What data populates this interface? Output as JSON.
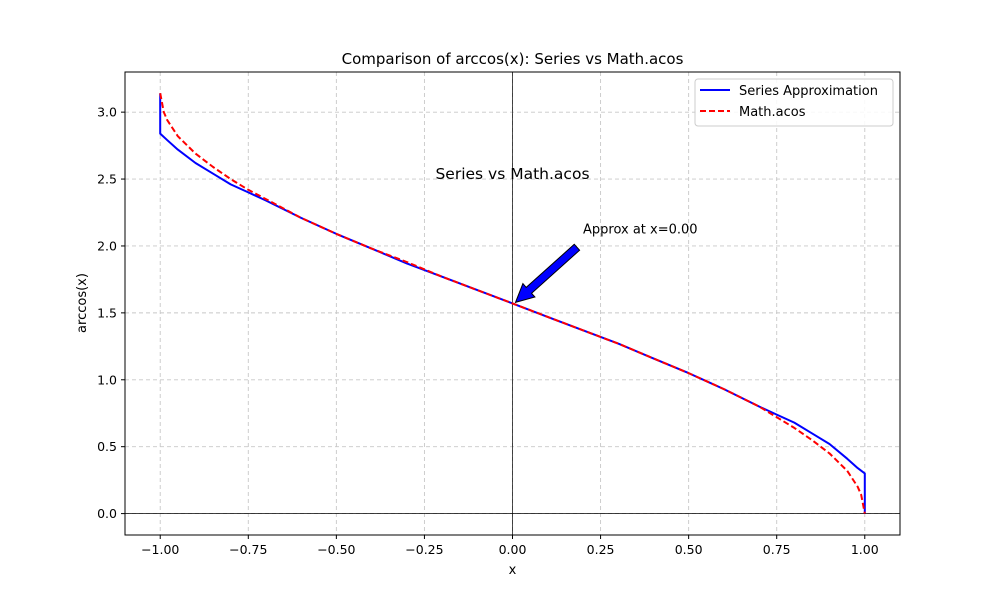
{
  "chart_data": {
    "type": "line",
    "title": "Comparison of arccos(x): Series vs Math.acos",
    "xlabel": "x",
    "ylabel": "arccos(x)",
    "xlim": [
      -1.1,
      1.1
    ],
    "ylim": [
      -0.16,
      3.3
    ],
    "xticks": [
      -1.0,
      -0.75,
      -0.5,
      -0.25,
      0.0,
      0.25,
      0.5,
      0.75,
      1.0
    ],
    "xtick_labels": [
      "−1.00",
      "−0.75",
      "−0.50",
      "−0.25",
      "0.00",
      "0.25",
      "0.50",
      "0.75",
      "1.00"
    ],
    "yticks": [
      0.0,
      0.5,
      1.0,
      1.5,
      2.0,
      2.5,
      3.0
    ],
    "ytick_labels": [
      "0.0",
      "0.5",
      "1.0",
      "1.5",
      "2.0",
      "2.5",
      "3.0"
    ],
    "grid": true,
    "legend_position": "top-right",
    "center_text": "Series vs Math.acos",
    "annotation": {
      "text": "Approx at x=0.00",
      "x": 0.0,
      "y": 1.571,
      "text_x": 0.2,
      "text_y": 2.08
    },
    "series": [
      {
        "name": "Series Approximation",
        "color": "#0000ff",
        "style": "solid",
        "x": [
          -1.0,
          -1.0,
          -0.98,
          -0.95,
          -0.9,
          -0.85,
          -0.8,
          -0.75,
          -0.7,
          -0.6,
          -0.5,
          -0.4,
          -0.3,
          -0.2,
          -0.1,
          0.0,
          0.1,
          0.2,
          0.3,
          0.4,
          0.5,
          0.6,
          0.7,
          0.75,
          0.8,
          0.85,
          0.9,
          0.95,
          0.98,
          1.0,
          1.0
        ],
        "y": [
          3.14,
          2.84,
          2.79,
          2.72,
          2.62,
          2.54,
          2.46,
          2.4,
          2.34,
          2.21,
          2.09,
          1.98,
          1.87,
          1.77,
          1.67,
          1.571,
          1.47,
          1.37,
          1.27,
          1.16,
          1.05,
          0.93,
          0.8,
          0.74,
          0.68,
          0.6,
          0.52,
          0.41,
          0.34,
          0.3,
          0.0
        ]
      },
      {
        "name": "Math.acos",
        "color": "#ff0000",
        "style": "dashed",
        "x": [
          -1.0,
          -0.99,
          -0.98,
          -0.95,
          -0.9,
          -0.85,
          -0.8,
          -0.75,
          -0.7,
          -0.6,
          -0.5,
          -0.4,
          -0.3,
          -0.2,
          -0.1,
          0.0,
          0.1,
          0.2,
          0.3,
          0.4,
          0.5,
          0.6,
          0.7,
          0.75,
          0.8,
          0.85,
          0.9,
          0.95,
          0.98,
          0.99,
          1.0
        ],
        "y": [
          3.1416,
          3.0,
          2.94,
          2.82,
          2.69,
          2.59,
          2.5,
          2.42,
          2.35,
          2.21,
          2.09,
          1.98,
          1.88,
          1.77,
          1.67,
          1.571,
          1.47,
          1.37,
          1.27,
          1.16,
          1.05,
          0.93,
          0.8,
          0.72,
          0.64,
          0.55,
          0.45,
          0.32,
          0.2,
          0.14,
          0.0
        ]
      }
    ]
  }
}
